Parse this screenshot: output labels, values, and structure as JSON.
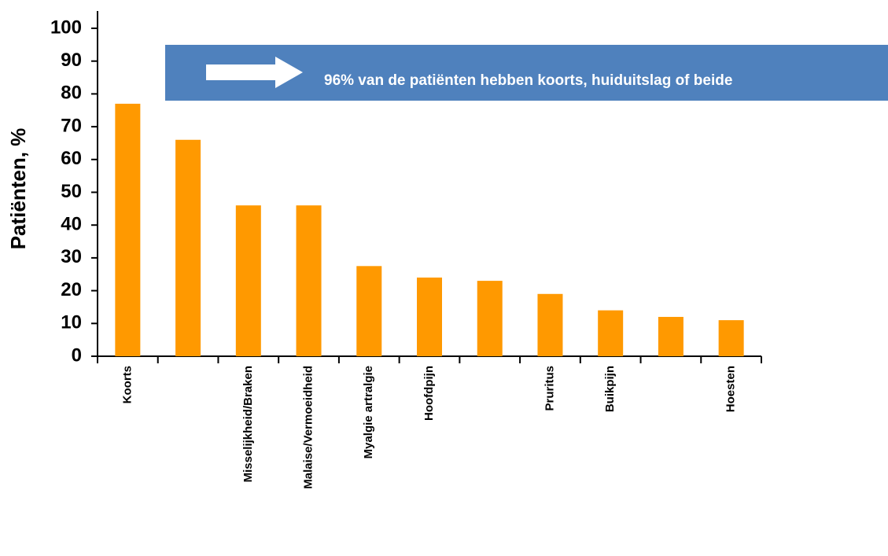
{
  "chart_data": {
    "type": "bar",
    "y_label": "Patiënten, %",
    "annotation": "96% van de patiënten hebben koorts, huiduitslag of beide",
    "categories": [
      "Koorts",
      null,
      "Misselijkheid/Braken",
      "Malaise/Vermoeidheid",
      "Myalgie artralgie",
      "Hoofdpijn",
      null,
      "Pruritus",
      "Buikpijn",
      null,
      "Hoesten"
    ],
    "values": [
      77,
      66,
      46,
      46,
      27.5,
      24,
      23,
      19,
      14,
      12,
      11
    ],
    "color": "#ff9900",
    "ylim": [
      0,
      100
    ],
    "yticks": [
      0,
      10,
      20,
      30,
      40,
      50,
      60,
      70,
      80,
      90,
      100
    ],
    "grid": false
  }
}
